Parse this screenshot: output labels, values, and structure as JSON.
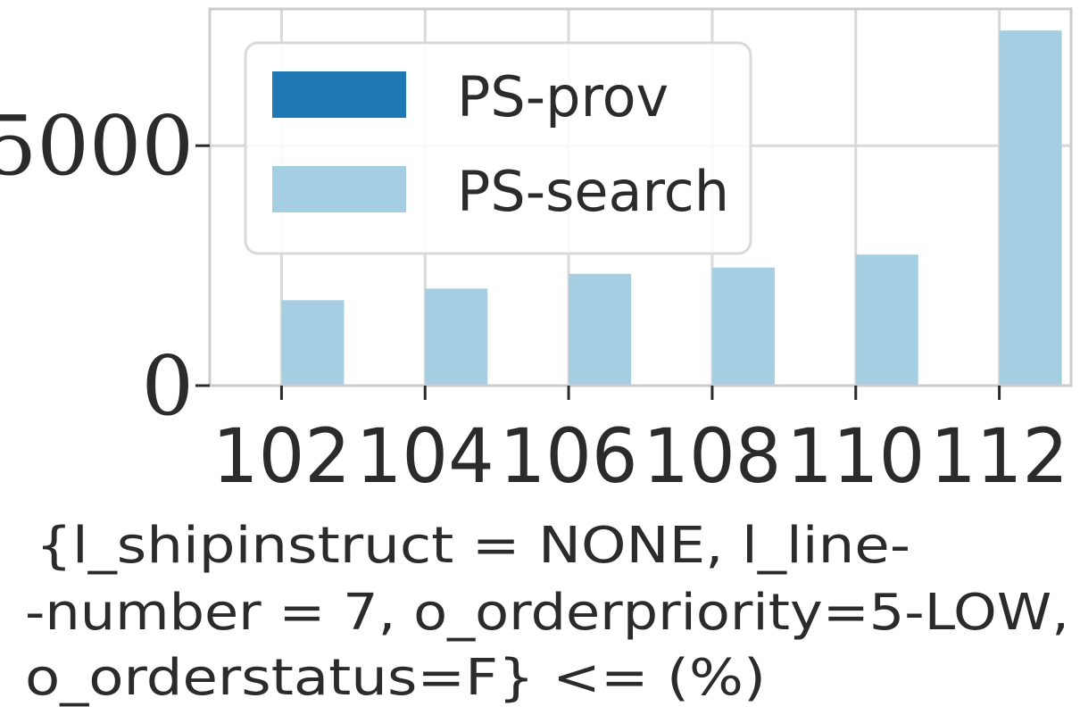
{
  "chart_data": {
    "type": "bar",
    "categories": [
      "102",
      "104",
      "106",
      "108",
      "110",
      "112"
    ],
    "series": [
      {
        "name": "PS-prov",
        "color": "#1f77b4",
        "values": [
          0,
          0,
          0,
          0,
          0,
          0
        ]
      },
      {
        "name": "PS-search",
        "color": "#a6cee3",
        "values": [
          1780,
          2020,
          2330,
          2460,
          2730,
          7400
        ]
      }
    ],
    "ylim": [
      0,
      7850
    ],
    "yticks": [
      {
        "value": 0,
        "label": "0"
      },
      {
        "value": 5000,
        "label": "5000"
      }
    ],
    "xlabel_lines": [
      "{l_shipinstruct = NONE, l_line-",
      "-number = 7, o_orderpriority=5-LOW,",
      "o_orderstatus=F} <= (%)"
    ],
    "grid": true,
    "legend": "top-left"
  }
}
